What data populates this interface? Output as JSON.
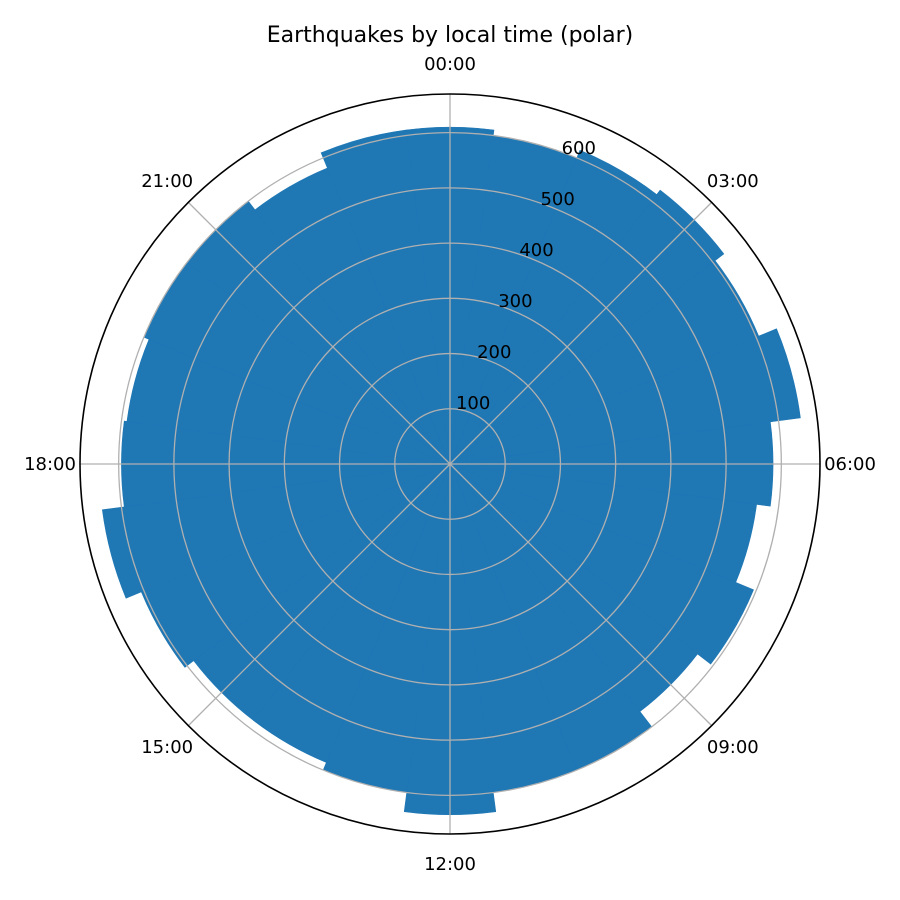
{
  "chart_data": {
    "type": "bar",
    "projection": "polar",
    "title": "Earthquakes by local time (polar)",
    "theta_direction": "clockwise",
    "theta_zero": "top",
    "categories": [
      "00:00",
      "01:00",
      "02:00",
      "03:00",
      "04:00",
      "05:00",
      "06:00",
      "07:00",
      "08:00",
      "09:00",
      "10:00",
      "11:00",
      "12:00",
      "13:00",
      "14:00",
      "15:00",
      "16:00",
      "17:00",
      "18:00",
      "19:00",
      "20:00",
      "21:00",
      "22:00",
      "23:00"
    ],
    "values": [
      610,
      600,
      615,
      625,
      605,
      640,
      585,
      560,
      595,
      565,
      600,
      600,
      635,
      600,
      585,
      585,
      605,
      635,
      595,
      590,
      600,
      600,
      580,
      610
    ],
    "theta_tick_labels": [
      "00:00",
      "03:00",
      "06:00",
      "09:00",
      "12:00",
      "15:00",
      "18:00",
      "21:00"
    ],
    "r_tick_labels": [
      "100",
      "200",
      "300",
      "400",
      "500",
      "600"
    ],
    "r_ticks": [
      100,
      200,
      300,
      400,
      500,
      600
    ],
    "rlim": [
      0,
      670
    ],
    "grid": true,
    "colors": {
      "bar": "#1f77b4",
      "grid": "#b0b0b0",
      "spine": "#000000"
    }
  }
}
